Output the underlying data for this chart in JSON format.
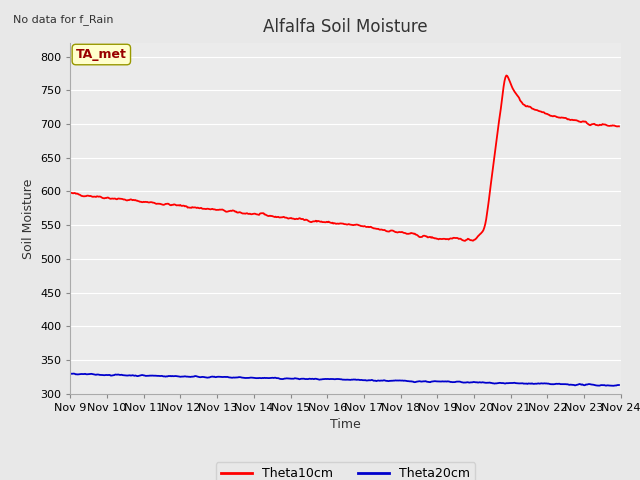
{
  "title": "Alfalfa Soil Moisture",
  "xlabel": "Time",
  "ylabel": "Soil Moisture",
  "top_left_text": "No data for f_Rain",
  "annotation_box": "TA_met",
  "xlim": [
    9,
    24
  ],
  "ylim": [
    300,
    820
  ],
  "yticks": [
    300,
    350,
    400,
    450,
    500,
    550,
    600,
    650,
    700,
    750,
    800
  ],
  "xtick_labels": [
    "Nov 9",
    "Nov 10",
    "Nov 11",
    "Nov 12",
    "Nov 13",
    "Nov 14",
    "Nov 15",
    "Nov 16",
    "Nov 17",
    "Nov 18",
    "Nov 19",
    "Nov 20",
    "Nov 21",
    "Nov 22",
    "Nov 23",
    "Nov 24"
  ],
  "line1_color": "#ff0000",
  "line2_color": "#0000cc",
  "line1_label": "Theta10cm",
  "line2_label": "Theta20cm",
  "outer_bg_color": "#e8e8e8",
  "plot_bg_color": "#ebebeb",
  "grid_color": "#ffffff",
  "title_fontsize": 12,
  "axis_label_fontsize": 9,
  "tick_fontsize": 8,
  "annotation_facecolor": "#ffffcc",
  "annotation_edgecolor": "#999900",
  "annotation_textcolor": "#990000"
}
